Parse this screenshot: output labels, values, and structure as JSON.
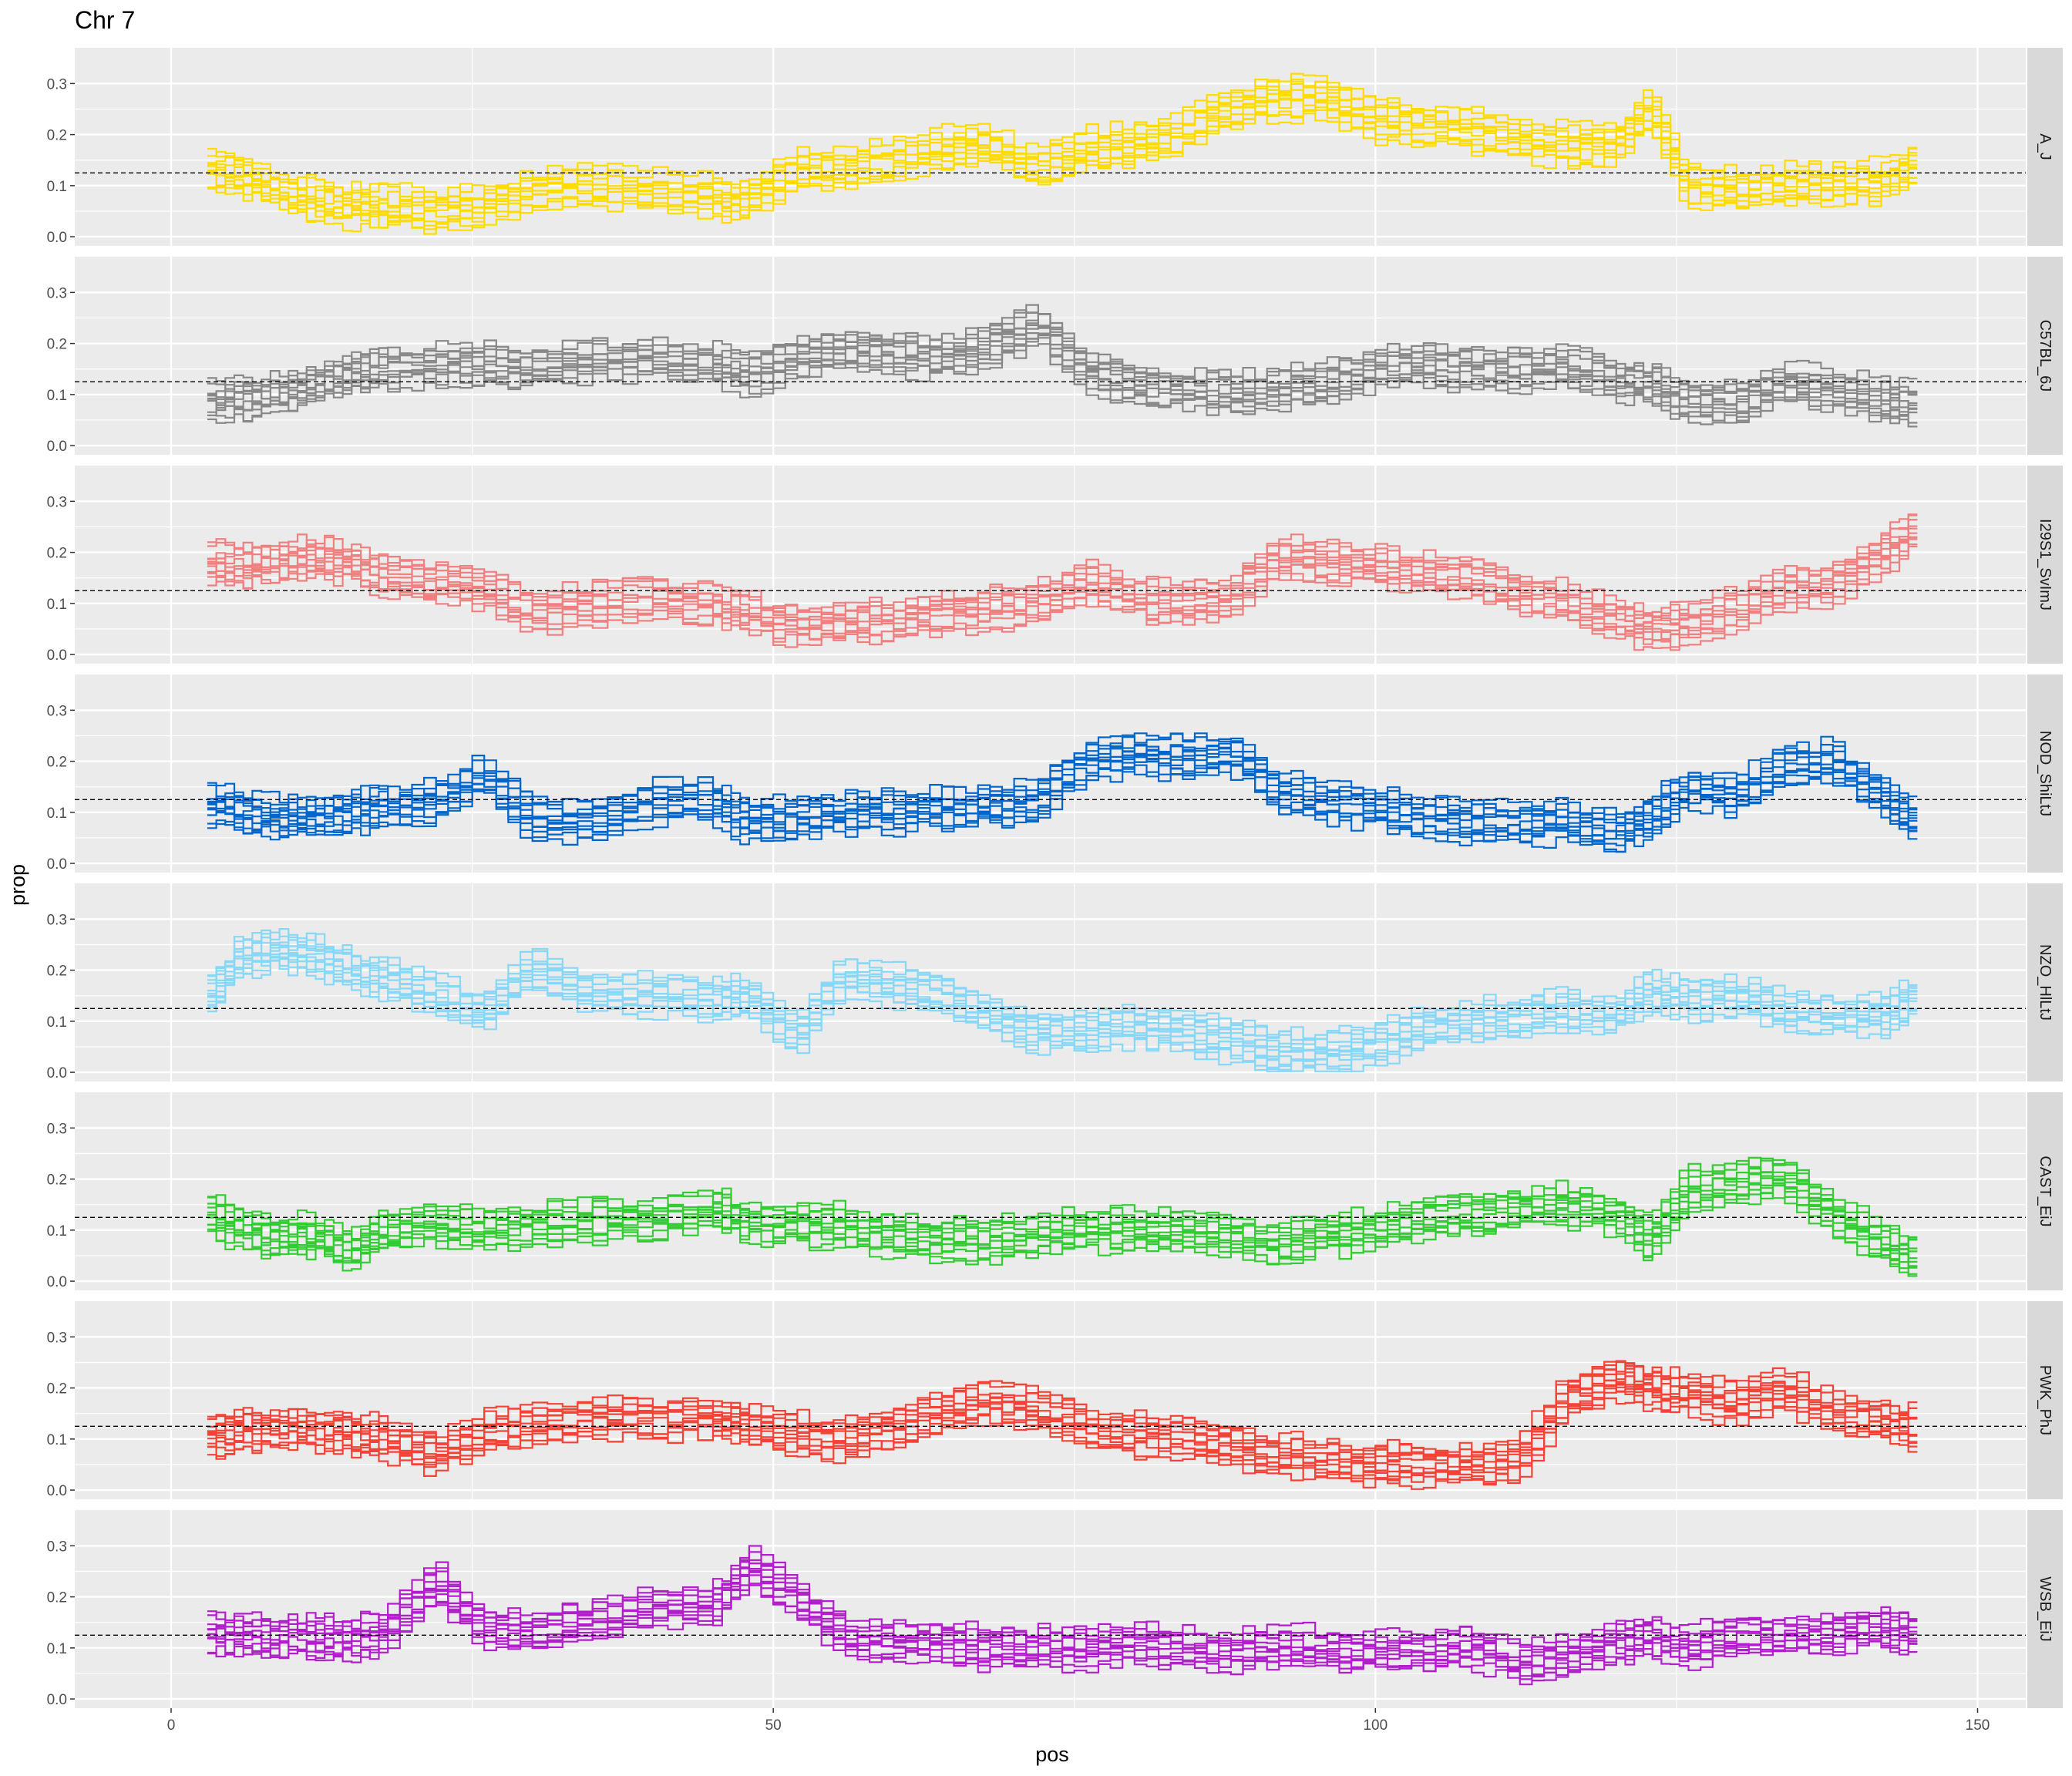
{
  "chart_data": {
    "type": "line",
    "title": "Chr 7",
    "xlabel": "pos",
    "ylabel": "prop",
    "xlim": [
      -8,
      154
    ],
    "ylim": [
      -0.018,
      0.37
    ],
    "x_ticks": [
      "0",
      "50",
      "100",
      "150"
    ],
    "y_ticks": [
      "0.0",
      "0.1",
      "0.2",
      "0.3"
    ],
    "reference_line": 0.125,
    "grid": true,
    "legend": "none",
    "lines_per_panel": 12,
    "panels": [
      {
        "name": "A_J",
        "color": "#FFDC00",
        "x": [
          3,
          6,
          9,
          12,
          15,
          18,
          22,
          26,
          30,
          35,
          40,
          45,
          48,
          52,
          56,
          60,
          64,
          68,
          72,
          76,
          80,
          84,
          88,
          92,
          96,
          100,
          104,
          108,
          112,
          116,
          120,
          123,
          126,
          130,
          134,
          138,
          142,
          145
        ],
        "values": [
          0.13,
          0.12,
          0.09,
          0.07,
          0.06,
          0.06,
          0.05,
          0.06,
          0.09,
          0.1,
          0.09,
          0.08,
          0.07,
          0.13,
          0.13,
          0.15,
          0.17,
          0.18,
          0.13,
          0.17,
          0.18,
          0.2,
          0.25,
          0.27,
          0.27,
          0.23,
          0.22,
          0.21,
          0.19,
          0.18,
          0.18,
          0.25,
          0.1,
          0.09,
          0.1,
          0.1,
          0.11,
          0.14
        ]
      },
      {
        "name": "C57BL_6J",
        "color": "#888888",
        "x": [
          3,
          6,
          9,
          12,
          15,
          18,
          22,
          26,
          30,
          35,
          40,
          45,
          48,
          52,
          56,
          60,
          64,
          68,
          72,
          76,
          80,
          84,
          88,
          92,
          96,
          100,
          104,
          108,
          112,
          116,
          120,
          123,
          126,
          130,
          134,
          138,
          142,
          145
        ],
        "values": [
          0.09,
          0.09,
          0.1,
          0.12,
          0.14,
          0.15,
          0.16,
          0.16,
          0.15,
          0.17,
          0.17,
          0.16,
          0.14,
          0.17,
          0.19,
          0.18,
          0.17,
          0.19,
          0.24,
          0.15,
          0.12,
          0.11,
          0.1,
          0.11,
          0.12,
          0.15,
          0.16,
          0.15,
          0.15,
          0.15,
          0.13,
          0.12,
          0.09,
          0.08,
          0.12,
          0.11,
          0.09,
          0.08
        ]
      },
      {
        "name": "I29S1_SvImJ",
        "color": "#F08080",
        "x": [
          3,
          6,
          9,
          12,
          15,
          18,
          22,
          26,
          30,
          35,
          40,
          45,
          48,
          52,
          56,
          60,
          64,
          68,
          72,
          76,
          80,
          84,
          88,
          92,
          96,
          100,
          104,
          108,
          112,
          116,
          120,
          123,
          126,
          130,
          134,
          138,
          142,
          145
        ],
        "values": [
          0.18,
          0.17,
          0.18,
          0.19,
          0.18,
          0.15,
          0.14,
          0.13,
          0.08,
          0.1,
          0.11,
          0.1,
          0.08,
          0.06,
          0.06,
          0.07,
          0.08,
          0.09,
          0.1,
          0.14,
          0.11,
          0.1,
          0.11,
          0.19,
          0.18,
          0.17,
          0.16,
          0.15,
          0.12,
          0.1,
          0.07,
          0.05,
          0.06,
          0.09,
          0.13,
          0.14,
          0.19,
          0.25
        ]
      },
      {
        "name": "NOD_ShiLtJ",
        "color": "#0066CC",
        "x": [
          3,
          6,
          9,
          12,
          15,
          18,
          22,
          26,
          30,
          35,
          40,
          45,
          48,
          52,
          56,
          60,
          64,
          68,
          72,
          76,
          80,
          84,
          88,
          92,
          96,
          100,
          104,
          108,
          112,
          116,
          120,
          123,
          126,
          130,
          134,
          138,
          142,
          145
        ],
        "values": [
          0.12,
          0.1,
          0.09,
          0.09,
          0.1,
          0.11,
          0.12,
          0.17,
          0.09,
          0.08,
          0.12,
          0.12,
          0.08,
          0.09,
          0.1,
          0.1,
          0.11,
          0.11,
          0.12,
          0.2,
          0.21,
          0.21,
          0.22,
          0.14,
          0.12,
          0.11,
          0.09,
          0.08,
          0.08,
          0.08,
          0.06,
          0.09,
          0.15,
          0.13,
          0.19,
          0.2,
          0.14,
          0.08
        ]
      },
      {
        "name": "NZO_HlLtJ",
        "color": "#87D7F7",
        "x": [
          3,
          6,
          9,
          12,
          15,
          18,
          22,
          26,
          30,
          35,
          40,
          45,
          48,
          52,
          56,
          60,
          64,
          68,
          72,
          76,
          80,
          84,
          88,
          92,
          96,
          100,
          104,
          108,
          112,
          116,
          120,
          123,
          126,
          130,
          134,
          138,
          142,
          145
        ],
        "values": [
          0.14,
          0.23,
          0.24,
          0.23,
          0.2,
          0.18,
          0.15,
          0.12,
          0.2,
          0.15,
          0.15,
          0.14,
          0.15,
          0.07,
          0.19,
          0.17,
          0.15,
          0.11,
          0.08,
          0.08,
          0.09,
          0.08,
          0.06,
          0.04,
          0.04,
          0.05,
          0.09,
          0.1,
          0.11,
          0.12,
          0.11,
          0.16,
          0.14,
          0.15,
          0.12,
          0.11,
          0.11,
          0.15
        ]
      },
      {
        "name": "CAST_EiJ",
        "color": "#33CC33",
        "x": [
          3,
          6,
          9,
          12,
          15,
          18,
          22,
          26,
          30,
          35,
          40,
          45,
          48,
          52,
          56,
          60,
          64,
          68,
          72,
          76,
          80,
          84,
          88,
          92,
          96,
          100,
          104,
          108,
          112,
          116,
          120,
          123,
          126,
          130,
          134,
          138,
          142,
          145
        ],
        "values": [
          0.13,
          0.1,
          0.09,
          0.09,
          0.06,
          0.1,
          0.11,
          0.1,
          0.11,
          0.12,
          0.12,
          0.14,
          0.12,
          0.11,
          0.11,
          0.09,
          0.08,
          0.08,
          0.09,
          0.1,
          0.1,
          0.1,
          0.09,
          0.07,
          0.09,
          0.1,
          0.12,
          0.13,
          0.14,
          0.15,
          0.13,
          0.08,
          0.18,
          0.19,
          0.21,
          0.13,
          0.08,
          0.04
        ]
      },
      {
        "name": "PWK_PhJ",
        "color": "#F44336",
        "x": [
          3,
          6,
          9,
          12,
          15,
          18,
          22,
          26,
          30,
          35,
          40,
          45,
          48,
          52,
          56,
          60,
          64,
          68,
          72,
          76,
          80,
          84,
          88,
          92,
          96,
          100,
          104,
          108,
          112,
          116,
          120,
          123,
          126,
          130,
          134,
          138,
          142,
          145
        ],
        "values": [
          0.1,
          0.12,
          0.12,
          0.12,
          0.11,
          0.1,
          0.07,
          0.11,
          0.13,
          0.14,
          0.14,
          0.14,
          0.13,
          0.11,
          0.1,
          0.12,
          0.15,
          0.17,
          0.16,
          0.12,
          0.11,
          0.1,
          0.09,
          0.07,
          0.06,
          0.05,
          0.05,
          0.05,
          0.06,
          0.18,
          0.22,
          0.2,
          0.19,
          0.17,
          0.2,
          0.15,
          0.14,
          0.12
        ]
      },
      {
        "name": "WSB_EiJ",
        "color": "#B31ECC",
        "x": [
          3,
          6,
          9,
          12,
          15,
          18,
          22,
          26,
          30,
          35,
          40,
          45,
          48,
          52,
          56,
          60,
          64,
          68,
          72,
          76,
          80,
          84,
          88,
          92,
          96,
          100,
          104,
          108,
          112,
          116,
          120,
          123,
          126,
          130,
          134,
          138,
          142,
          145
        ],
        "values": [
          0.13,
          0.12,
          0.12,
          0.12,
          0.12,
          0.13,
          0.23,
          0.14,
          0.13,
          0.15,
          0.18,
          0.18,
          0.26,
          0.2,
          0.12,
          0.11,
          0.11,
          0.1,
          0.1,
          0.1,
          0.11,
          0.1,
          0.09,
          0.1,
          0.1,
          0.09,
          0.09,
          0.1,
          0.07,
          0.08,
          0.11,
          0.12,
          0.1,
          0.12,
          0.12,
          0.13,
          0.14,
          0.12
        ]
      }
    ]
  }
}
